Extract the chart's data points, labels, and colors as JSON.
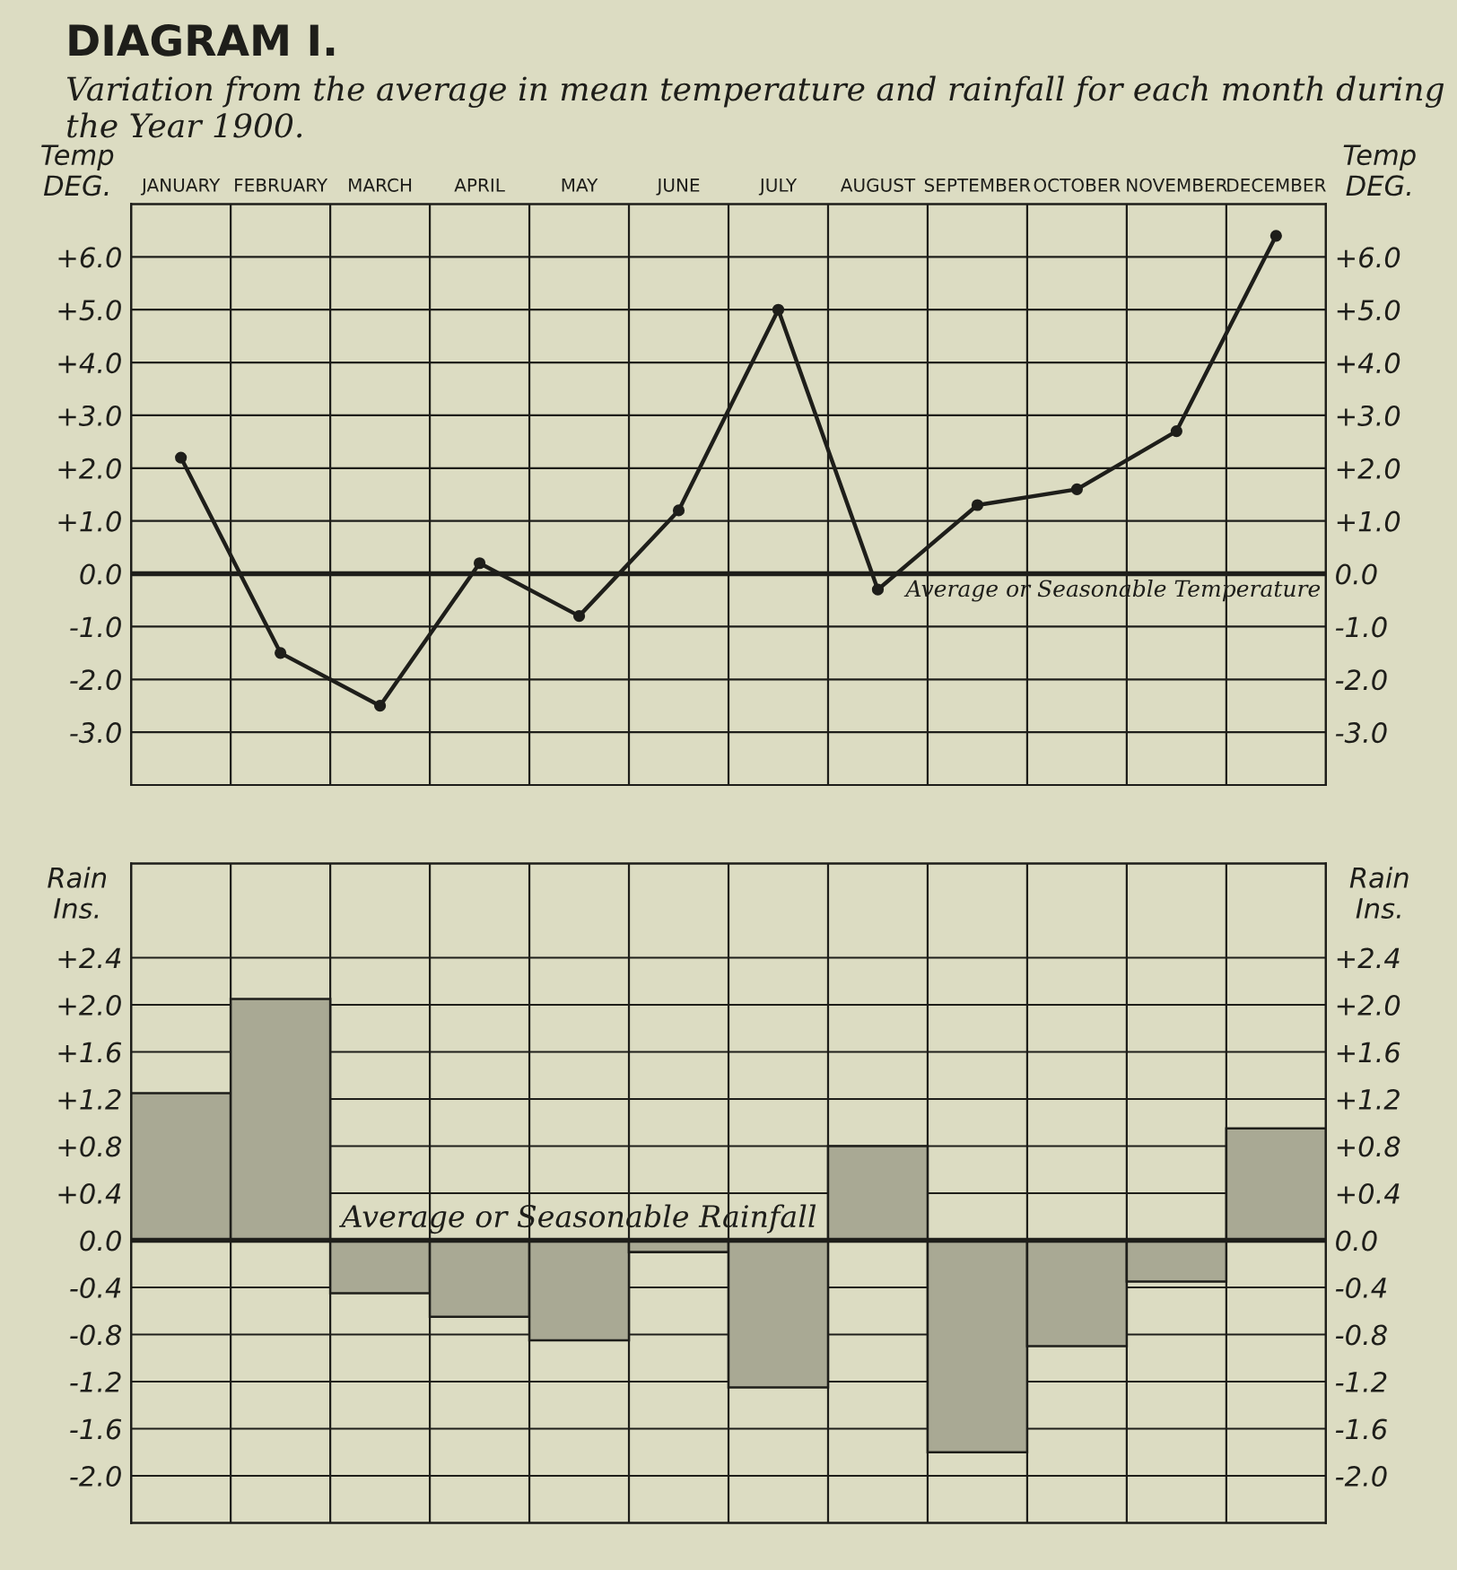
{
  "chart_data": [
    {
      "type": "line",
      "title": "DIAGRAM I.",
      "subtitle": "Variation from the average in mean temperature and rainfall for each month during the Year 1900.",
      "ylabel": "Temp\nDEG.",
      "y2label": "Temp\nDEG.",
      "categories": [
        "JANUARY",
        "FEBRUARY",
        "MARCH",
        "APRIL",
        "MAY",
        "JUNE",
        "JULY",
        "AUGUST",
        "SEPTEMBER",
        "OCTOBER",
        "NOVEMBER",
        "DECEMBER"
      ],
      "series": [
        {
          "color": "#1e1e1a",
          "values": [
            2.2,
            -1.5,
            -2.5,
            0.2,
            -0.8,
            1.2,
            5.0,
            -0.3,
            1.3,
            1.6,
            2.7,
            6.4
          ]
        }
      ],
      "marker": "circle",
      "line_style": "solid",
      "ylim": [
        -4,
        7
      ],
      "yticks": [
        {
          "value": 6,
          "label": "+6.0"
        },
        {
          "value": 5,
          "label": "+5.0"
        },
        {
          "value": 4,
          "label": "+4.0"
        },
        {
          "value": 3,
          "label": "+3.0"
        },
        {
          "value": 2,
          "label": "+2.0"
        },
        {
          "value": 1,
          "label": "+1.0"
        },
        {
          "value": 0,
          "label": "0.0"
        },
        {
          "value": -1,
          "label": "-1.0"
        },
        {
          "value": -2,
          "label": "-2.0"
        },
        {
          "value": -3,
          "label": "-3.0"
        }
      ],
      "y2lim": [
        -4,
        7
      ],
      "y2ticks": [
        {
          "value": 6,
          "label": "+6.0"
        },
        {
          "value": 5,
          "label": "+5.0"
        },
        {
          "value": 4,
          "label": "+4.0"
        },
        {
          "value": 3,
          "label": "+3.0"
        },
        {
          "value": 2,
          "label": "+2.0"
        },
        {
          "value": 1,
          "label": "+1.0"
        },
        {
          "value": 0,
          "label": "0.0"
        },
        {
          "value": -1,
          "label": "-1.0"
        },
        {
          "value": -2,
          "label": "-2.0"
        },
        {
          "value": -3,
          "label": "-3.0"
        }
      ],
      "ref_lines": [
        {
          "axis": "y",
          "value": 0,
          "label": "Average or Seasonable Temperature",
          "color": "#1e1e1a"
        }
      ],
      "grid": true
    },
    {
      "type": "bar",
      "ylabel": "Rain\nIns.",
      "y2label": "Rain\nIns.",
      "categories": [
        null,
        null,
        null,
        null,
        null,
        null,
        null,
        null,
        null,
        null,
        null,
        null
      ],
      "series": [
        {
          "color": "#a9a994",
          "values": [
            1.25,
            2.05,
            -0.45,
            -0.65,
            -0.85,
            -0.1,
            -1.25,
            0.8,
            -1.8,
            -0.9,
            -0.35,
            0.95
          ]
        }
      ],
      "ylim": [
        -2.4,
        3.2
      ],
      "yticks": [
        {
          "value": 2.4,
          "label": "+2.4"
        },
        {
          "value": 2.0,
          "label": "+2.0"
        },
        {
          "value": 1.6,
          "label": "+1.6"
        },
        {
          "value": 1.2,
          "label": "+1.2"
        },
        {
          "value": 0.8,
          "label": "+0.8"
        },
        {
          "value": 0.4,
          "label": "+0.4"
        },
        {
          "value": 0,
          "label": "0.0"
        },
        {
          "value": -0.4,
          "label": "-0.4"
        },
        {
          "value": -0.8,
          "label": "-0.8"
        },
        {
          "value": -1.2,
          "label": "-1.2"
        },
        {
          "value": -1.6,
          "label": "-1.6"
        },
        {
          "value": -2.0,
          "label": "-2.0"
        }
      ],
      "y2lim": [
        -2.4,
        3.2
      ],
      "y2ticks": [
        {
          "value": 2.4,
          "label": "+2.4"
        },
        {
          "value": 2.0,
          "label": "+2.0"
        },
        {
          "value": 1.6,
          "label": "+1.6"
        },
        {
          "value": 1.2,
          "label": "+1.2"
        },
        {
          "value": 0.8,
          "label": "+0.8"
        },
        {
          "value": 0.4,
          "label": "+0.4"
        },
        {
          "value": 0,
          "label": "0.0"
        },
        {
          "value": -0.4,
          "label": "-0.4"
        },
        {
          "value": -0.8,
          "label": "-0.8"
        },
        {
          "value": -1.2,
          "label": "-1.2"
        },
        {
          "value": -1.6,
          "label": "-1.6"
        },
        {
          "value": -2.0,
          "label": "-2.0"
        }
      ],
      "ref_lines": [
        {
          "axis": "y",
          "value": 0,
          "label": "Average or Seasonable Rainfall",
          "color": "#1e1e1a"
        }
      ],
      "tick_labels": "y",
      "grid": true
    }
  ]
}
